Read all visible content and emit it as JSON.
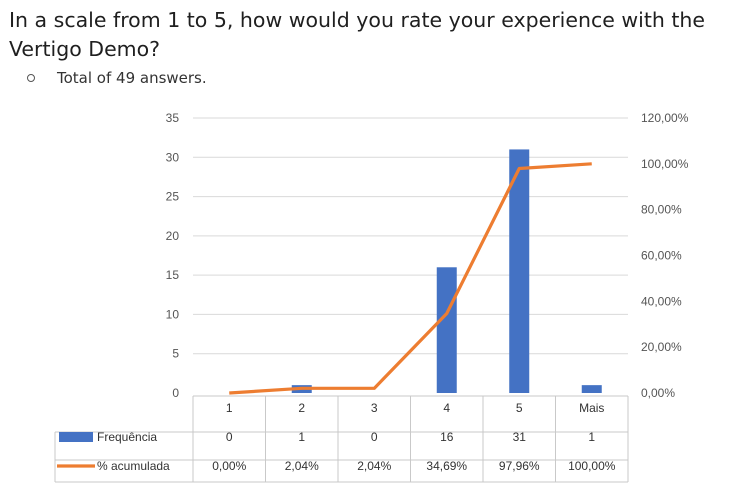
{
  "question": "In a scale from 1 to 5, how would you rate your experience with the Vertigo Demo?",
  "note": "Total of 49 answers.",
  "chart_data": {
    "type": "bar",
    "categories": [
      "1",
      "2",
      "3",
      "4",
      "5",
      "Mais"
    ],
    "series": [
      {
        "name": "Frequência",
        "kind": "bar",
        "axis": "left",
        "color": "#4472C4",
        "values": [
          0,
          1,
          0,
          16,
          31,
          1
        ],
        "labels": [
          "0",
          "1",
          "0",
          "16",
          "31",
          "1"
        ]
      },
      {
        "name": "% acumulada",
        "kind": "line",
        "axis": "right",
        "color": "#ED7D31",
        "values": [
          0.0,
          2.04,
          2.04,
          34.69,
          97.96,
          100.0
        ],
        "labels": [
          "0,00%",
          "2,04%",
          "2,04%",
          "34,69%",
          "97,96%",
          "100,00%"
        ]
      }
    ],
    "y_left": {
      "range": [
        0,
        35
      ],
      "ticks": [
        "0",
        "5",
        "10",
        "15",
        "20",
        "25",
        "30",
        "35"
      ]
    },
    "y_right": {
      "range": [
        0,
        120
      ],
      "ticks": [
        "0,00%",
        "20,00%",
        "40,00%",
        "60,00%",
        "80,00%",
        "100,00%",
        "120,00%"
      ]
    },
    "grid": true,
    "legend": "data-table"
  }
}
